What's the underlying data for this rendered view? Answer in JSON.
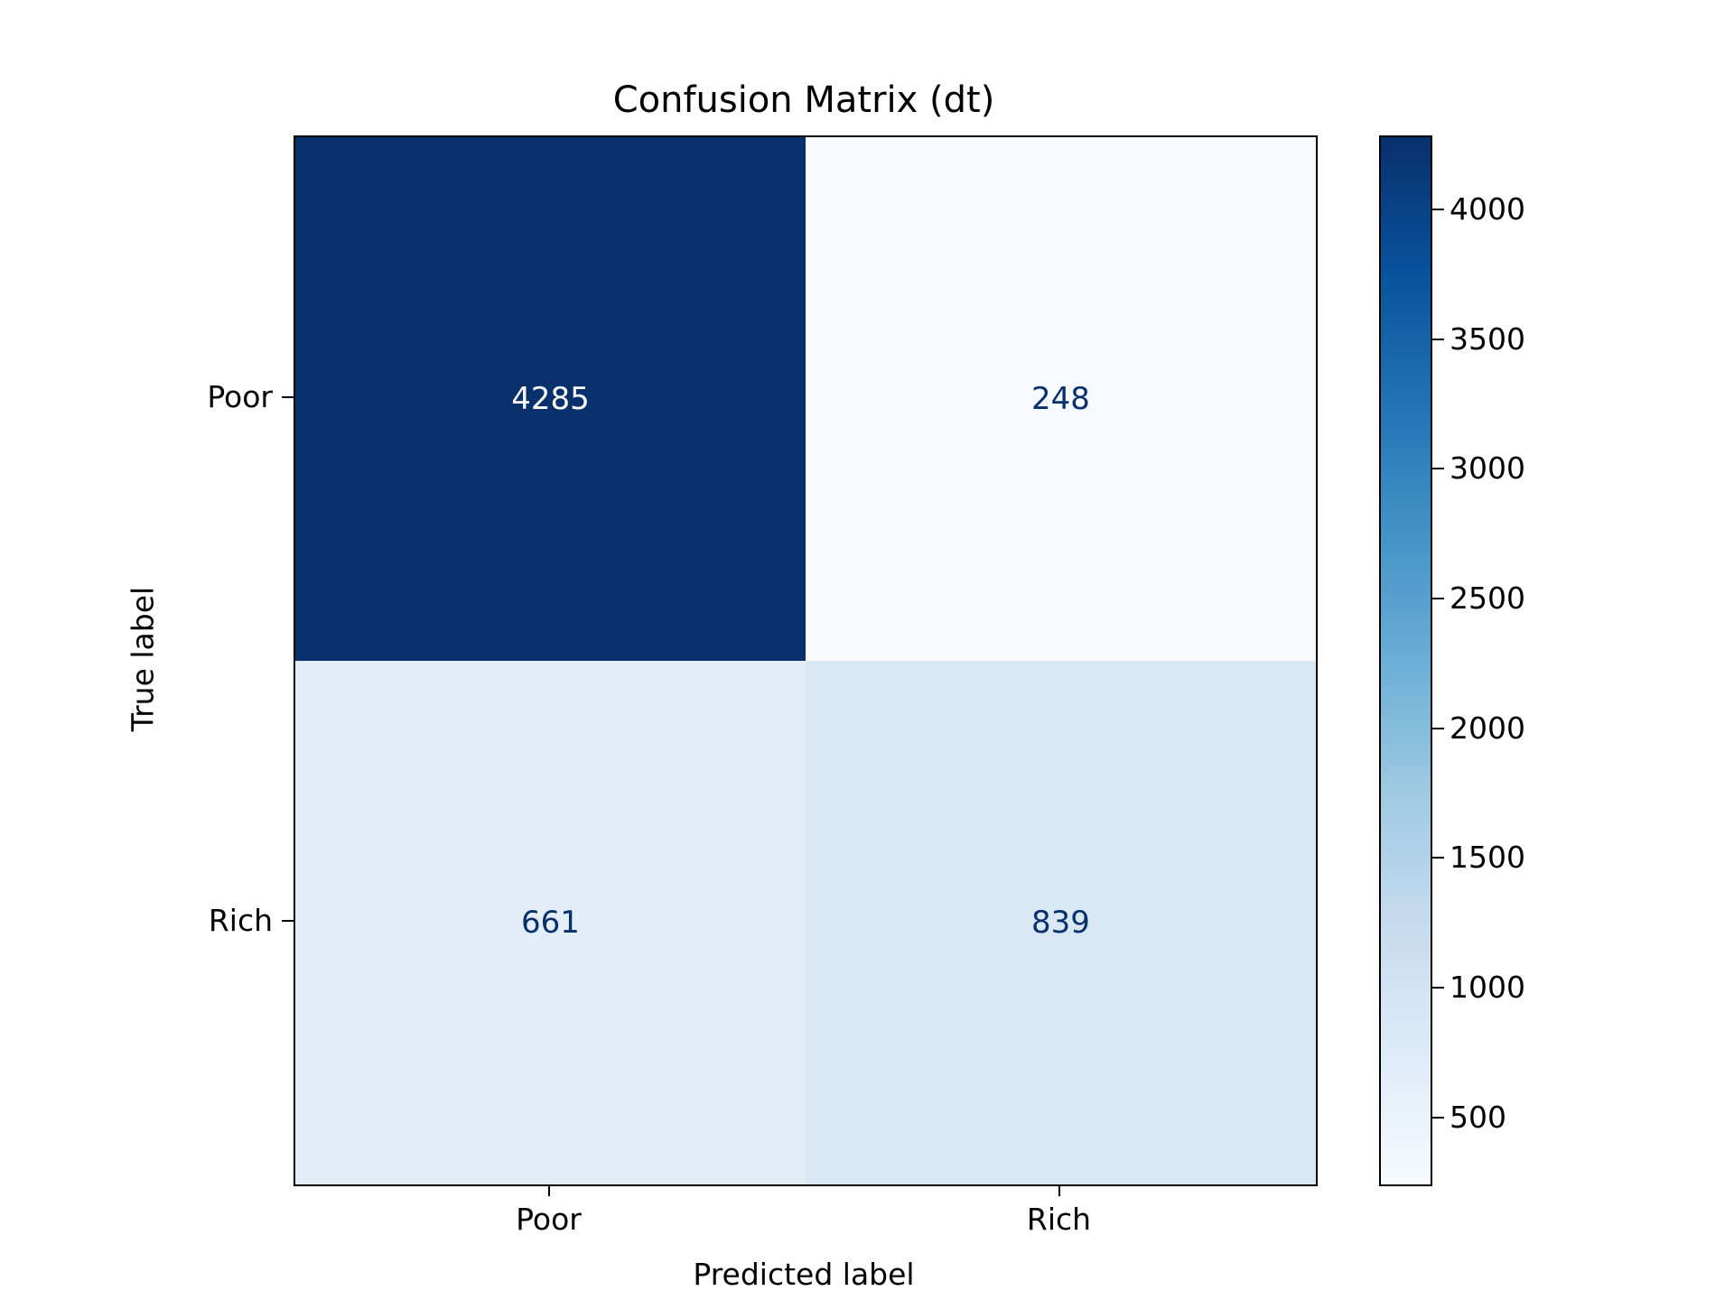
{
  "title": "Confusion Matrix (dt)",
  "chart_data": {
    "type": "heatmap",
    "title": "Confusion Matrix (dt)",
    "xlabel": "Predicted label",
    "ylabel": "True label",
    "x_categories": [
      "Poor",
      "Rich"
    ],
    "y_categories": [
      "Poor",
      "Rich"
    ],
    "values": [
      [
        4285,
        248
      ],
      [
        661,
        839
      ]
    ],
    "vmin": 248,
    "vmax": 4285,
    "colormap": "Blues",
    "colorbar_ticks": [
      500,
      1000,
      1500,
      2000,
      2500,
      3000,
      3500,
      4000
    ],
    "legend_position": "colorbar-right",
    "grid": false
  },
  "colors": {
    "cmap_min": "#f7fbff",
    "cmap_max": "#08306b",
    "cell_text_dark": "#08306b",
    "cell_text_light": "#ffffff",
    "axis": "#000000",
    "background": "#ffffff"
  }
}
